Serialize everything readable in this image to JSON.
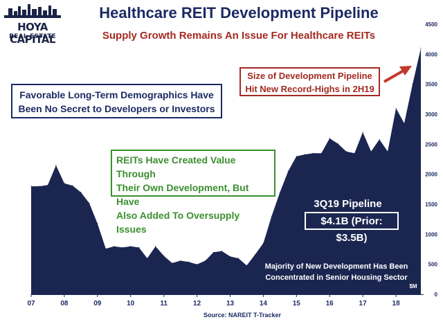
{
  "logo": {
    "line1": "HOYA CAPITAL",
    "line2": "REAL ESTATE"
  },
  "title": "Healthcare REIT Development Pipeline",
  "subtitle": "Supply Growth Remains An Issue For Healthcare REITs",
  "annotations": {
    "record_highs": [
      "Size of Development Pipeline",
      "Hit New Record-Highs in 2H19"
    ],
    "demographics": [
      "Favorable Long-Term Demographics Have",
      "Been No Secret to Developers or Investors"
    ],
    "reits_value": [
      "REITs Have Created Value Through",
      "Their Own Development, But Have",
      "Also Added To Oversupply Issues"
    ],
    "pipeline_label": "3Q19 Pipeline",
    "pipeline_value": "$4.1B (Prior: $3.5B)",
    "senior_housing": [
      "Majority of New Development Has Been",
      "Concentrated in Senior Housing Sector"
    ]
  },
  "source": "Source: NAREIT T-Tracker",
  "colors": {
    "area_fill": "#1b2650",
    "title": "#1b2a63",
    "red": "#a32a20",
    "green": "#3a8f2e",
    "arrow": "#c0392b"
  },
  "chart_data": {
    "type": "area",
    "unit_label": "$M",
    "x_tick_labels": [
      "07",
      "08",
      "09",
      "10",
      "11",
      "12",
      "13",
      "14",
      "15",
      "16",
      "17",
      "18"
    ],
    "ylim": [
      0,
      4500
    ],
    "y_ticks": [
      0,
      500,
      1000,
      1500,
      2000,
      2500,
      3000,
      3500,
      4000,
      4500
    ],
    "y_axis_side": "right",
    "grid": false,
    "x": [
      2007.0,
      2007.25,
      2007.5,
      2007.75,
      2008.0,
      2008.25,
      2008.5,
      2008.75,
      2009.0,
      2009.25,
      2009.5,
      2009.75,
      2010.0,
      2010.25,
      2010.5,
      2010.75,
      2011.0,
      2011.25,
      2011.5,
      2011.75,
      2012.0,
      2012.25,
      2012.5,
      2012.75,
      2013.0,
      2013.25,
      2013.5,
      2013.75,
      2014.0,
      2014.25,
      2014.5,
      2014.75,
      2015.0,
      2015.25,
      2015.5,
      2015.75,
      2016.0,
      2016.25,
      2016.5,
      2016.75,
      2017.0,
      2017.25,
      2017.5,
      2017.75,
      2018.0,
      2018.25,
      2018.5,
      2018.75
    ],
    "values": [
      1800,
      1800,
      1820,
      2150,
      1850,
      1810,
      1700,
      1520,
      1180,
      760,
      800,
      780,
      800,
      780,
      600,
      800,
      640,
      520,
      560,
      540,
      500,
      560,
      700,
      720,
      630,
      600,
      480,
      660,
      850,
      1300,
      1700,
      2050,
      2300,
      2330,
      2350,
      2350,
      2600,
      2510,
      2380,
      2350,
      2700,
      2380,
      2580,
      2380,
      3100,
      2850,
      3500,
      4100
    ]
  }
}
